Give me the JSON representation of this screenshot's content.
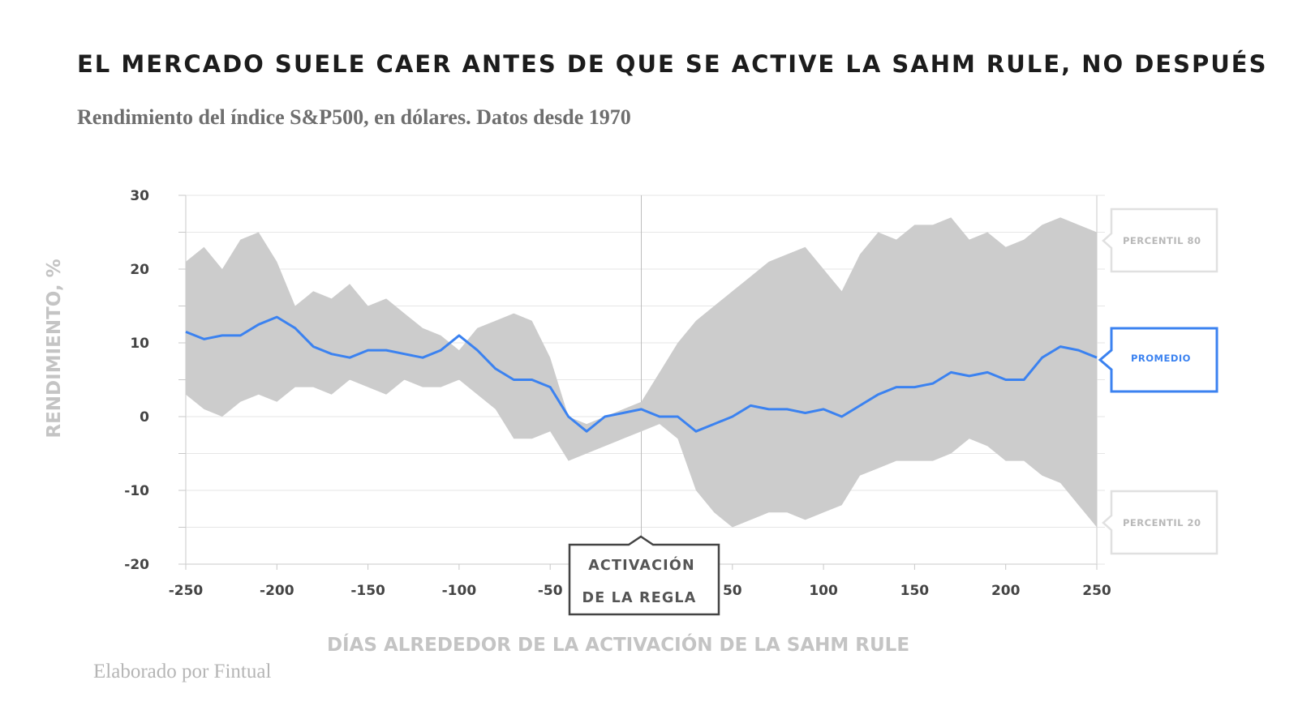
{
  "title": "EL MERCADO SUELE CAER ANTES DE QUE SE ACTIVE LA SAHM RULE, NO DESPUÉS",
  "subtitle": "Rendimiento del índice S&P500, en dólares. Datos desde 1970",
  "footer": "Elaborado por Fintual",
  "colors": {
    "band": "#cccccc",
    "mean_line": "#3b82f0",
    "grid": "#e6e6e6",
    "callout_gray": "#dddddd"
  },
  "chart_data": {
    "type": "area",
    "xlabel": "DÍAS ALREDEDOR DE LA ACTIVACIÓN DE LA SAHM RULE",
    "ylabel": "RENDIMIENTO, %",
    "xlim": [
      -250,
      250
    ],
    "ylim": [
      -20,
      30
    ],
    "xticks": [
      -250,
      -200,
      -150,
      -100,
      -50,
      50,
      100,
      150,
      200,
      250
    ],
    "yticks": [
      30,
      20,
      10,
      0,
      -10,
      -20
    ],
    "grid": true,
    "annotation": {
      "line1": "ACTIVACIÓN",
      "line2": "DE LA REGLA",
      "x": 0
    },
    "labels": {
      "p80": "PERCENTIL 80",
      "mean": "PROMEDIO",
      "p20": "PERCENTIL 20"
    },
    "x": [
      -250,
      -240,
      -230,
      -220,
      -210,
      -200,
      -190,
      -180,
      -170,
      -160,
      -150,
      -140,
      -130,
      -120,
      -110,
      -100,
      -90,
      -80,
      -70,
      -60,
      -50,
      -40,
      -30,
      -20,
      -10,
      0,
      10,
      20,
      30,
      40,
      50,
      60,
      70,
      80,
      90,
      100,
      110,
      120,
      130,
      140,
      150,
      160,
      170,
      180,
      190,
      200,
      210,
      220,
      230,
      240,
      250
    ],
    "series": [
      {
        "name": "PERCENTIL 80",
        "values": [
          21,
          23,
          20,
          24,
          25,
          21,
          15,
          17,
          16,
          18,
          15,
          16,
          14,
          12,
          11,
          9,
          12,
          13,
          14,
          13,
          8,
          0,
          -1,
          0,
          1,
          2,
          6,
          10,
          13,
          15,
          17,
          19,
          21,
          22,
          23,
          20,
          17,
          22,
          25,
          24,
          26,
          26,
          27,
          24,
          25,
          23,
          24,
          26,
          27,
          26,
          25
        ]
      },
      {
        "name": "PROMEDIO",
        "values": [
          11.5,
          10.5,
          11,
          11,
          12.5,
          13.5,
          12,
          9.5,
          8.5,
          8,
          9,
          9,
          8.5,
          8,
          9,
          11,
          9,
          6.5,
          5,
          5,
          4,
          0,
          -2,
          0,
          0.5,
          1,
          0,
          0,
          -2,
          -1,
          0,
          1.5,
          1,
          1,
          0.5,
          1,
          0,
          1.5,
          3,
          4,
          4,
          4.5,
          6,
          5.5,
          6,
          5,
          5,
          8,
          9.5,
          9,
          8
        ]
      },
      {
        "name": "PERCENTIL 20",
        "values": [
          3,
          1,
          0,
          2,
          3,
          2,
          4,
          4,
          3,
          5,
          4,
          3,
          5,
          4,
          4,
          5,
          3,
          1,
          -3,
          -3,
          -2,
          -6,
          -5,
          -4,
          -3,
          -2,
          -1,
          -3,
          -10,
          -13,
          -15,
          -14,
          -13,
          -13,
          -14,
          -13,
          -12,
          -8,
          -7,
          -6,
          -6,
          -6,
          -5,
          -3,
          -4,
          -6,
          -6,
          -8,
          -9,
          -12,
          -15
        ]
      }
    ]
  }
}
